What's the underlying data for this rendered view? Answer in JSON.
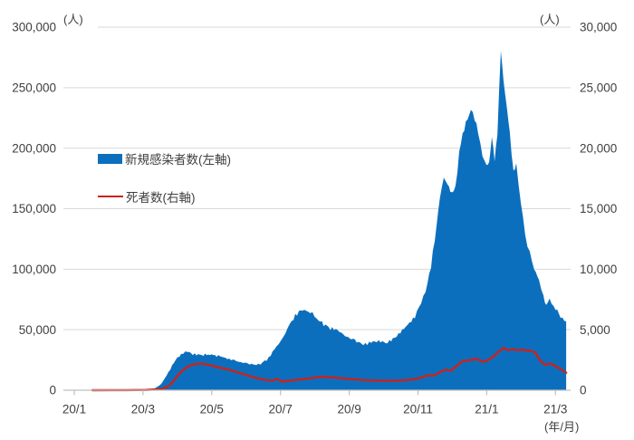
{
  "chart_data": {
    "type": "area",
    "combo": "area (left axis) + line (right axis)",
    "title": "",
    "grid": "horizontal",
    "legend_position": "inside-upper-left",
    "x_unit_note": "points use months since 20/1 tick (0 = 20/1, 14 = 21/3)",
    "left_axis": {
      "unit": "(人)",
      "min": 0,
      "max": 300000,
      "tick_step": 50000,
      "tick_labels": [
        "0",
        "50,000",
        "100,000",
        "150,000",
        "200,000",
        "250,000",
        "300,000"
      ]
    },
    "right_axis": {
      "unit": "(人)",
      "min": 0,
      "max": 30000,
      "tick_step": 5000,
      "tick_labels": [
        "0",
        "5,000",
        "10,000",
        "15,000",
        "20,000",
        "25,000",
        "30,000"
      ]
    },
    "x_axis": {
      "unit": "(年/月)",
      "tick_labels": [
        "20/1",
        "20/3",
        "20/5",
        "20/7",
        "20/9",
        "20/11",
        "21/1",
        "21/3"
      ],
      "tick_month_positions": [
        0,
        2,
        4,
        6,
        8,
        10,
        12,
        14
      ]
    },
    "series": [
      {
        "name": "新規感染者数(左軸)",
        "type": "area",
        "axis": "left",
        "color": "#0C6FBD",
        "points": [
          [
            0.53,
            0
          ],
          [
            1.5,
            100
          ],
          [
            2.05,
            300
          ],
          [
            2.32,
            1000
          ],
          [
            2.53,
            5000
          ],
          [
            2.74,
            15000
          ],
          [
            2.95,
            25000
          ],
          [
            3.11,
            29500
          ],
          [
            3.29,
            32500
          ],
          [
            3.45,
            30000
          ],
          [
            3.66,
            29000
          ],
          [
            3.95,
            29500
          ],
          [
            4.24,
            28000
          ],
          [
            4.56,
            25500
          ],
          [
            4.85,
            23000
          ],
          [
            5.16,
            21500
          ],
          [
            5.35,
            21000
          ],
          [
            5.48,
            23000
          ],
          [
            5.66,
            26500
          ],
          [
            5.88,
            36000
          ],
          [
            6.01,
            40500
          ],
          [
            6.14,
            47000
          ],
          [
            6.27,
            55000
          ],
          [
            6.43,
            61500
          ],
          [
            6.59,
            65500
          ],
          [
            6.8,
            66000
          ],
          [
            6.93,
            63000
          ],
          [
            7.11,
            57500
          ],
          [
            7.4,
            52000
          ],
          [
            7.61,
            50000
          ],
          [
            7.93,
            44000
          ],
          [
            8.12,
            42000
          ],
          [
            8.41,
            37500
          ],
          [
            8.64,
            40000
          ],
          [
            8.91,
            41000
          ],
          [
            9.06,
            38500
          ],
          [
            9.38,
            45000
          ],
          [
            9.7,
            53500
          ],
          [
            9.91,
            61000
          ],
          [
            10.09,
            72000
          ],
          [
            10.22,
            82000
          ],
          [
            10.38,
            103000
          ],
          [
            10.54,
            135000
          ],
          [
            10.64,
            160000
          ],
          [
            10.75,
            176000
          ],
          [
            10.86,
            170000
          ],
          [
            10.94,
            163000
          ],
          [
            11.01,
            161000
          ],
          [
            11.09,
            168000
          ],
          [
            11.2,
            196000
          ],
          [
            11.3,
            212000
          ],
          [
            11.44,
            224000
          ],
          [
            11.54,
            232000
          ],
          [
            11.65,
            224000
          ],
          [
            11.75,
            213000
          ],
          [
            11.88,
            193000
          ],
          [
            11.99,
            186000
          ],
          [
            12.07,
            189000
          ],
          [
            12.15,
            211000
          ],
          [
            12.23,
            190000
          ],
          [
            12.31,
            212000
          ],
          [
            12.41,
            281000
          ],
          [
            12.49,
            256000
          ],
          [
            12.59,
            231000
          ],
          [
            12.67,
            212000
          ],
          [
            12.78,
            180000
          ],
          [
            12.86,
            186000
          ],
          [
            12.99,
            156000
          ],
          [
            13.12,
            128000
          ],
          [
            13.25,
            113000
          ],
          [
            13.38,
            101000
          ],
          [
            13.52,
            90000
          ],
          [
            13.65,
            78000
          ],
          [
            13.73,
            71000
          ],
          [
            13.83,
            74000
          ],
          [
            13.95,
            70000
          ],
          [
            14.05,
            65000
          ],
          [
            14.15,
            61000
          ],
          [
            14.31,
            57000
          ]
        ]
      },
      {
        "name": "死者数(右軸)",
        "type": "line",
        "axis": "right",
        "color": "#CC221C",
        "points": [
          [
            0.53,
            0
          ],
          [
            1.5,
            5
          ],
          [
            2.1,
            20
          ],
          [
            2.55,
            100
          ],
          [
            2.75,
            350
          ],
          [
            2.9,
            800
          ],
          [
            3.1,
            1500
          ],
          [
            3.3,
            1950
          ],
          [
            3.5,
            2150
          ],
          [
            3.7,
            2200
          ],
          [
            3.9,
            2100
          ],
          [
            4.1,
            1950
          ],
          [
            4.5,
            1700
          ],
          [
            4.9,
            1350
          ],
          [
            5.3,
            1000
          ],
          [
            5.6,
            830
          ],
          [
            5.78,
            800
          ],
          [
            5.9,
            950
          ],
          [
            6.05,
            700
          ],
          [
            6.2,
            760
          ],
          [
            6.45,
            850
          ],
          [
            6.7,
            920
          ],
          [
            6.95,
            1020
          ],
          [
            7.15,
            1120
          ],
          [
            7.5,
            1060
          ],
          [
            7.9,
            960
          ],
          [
            8.3,
            870
          ],
          [
            8.6,
            810
          ],
          [
            9.0,
            770
          ],
          [
            9.4,
            790
          ],
          [
            9.8,
            870
          ],
          [
            10.1,
            1050
          ],
          [
            10.3,
            1250
          ],
          [
            10.45,
            1200
          ],
          [
            10.65,
            1500
          ],
          [
            10.8,
            1700
          ],
          [
            10.95,
            1600
          ],
          [
            11.1,
            1950
          ],
          [
            11.3,
            2400
          ],
          [
            11.55,
            2500
          ],
          [
            11.7,
            2600
          ],
          [
            11.88,
            2350
          ],
          [
            12.05,
            2500
          ],
          [
            12.2,
            2800
          ],
          [
            12.35,
            3200
          ],
          [
            12.5,
            3500
          ],
          [
            12.62,
            3300
          ],
          [
            12.75,
            3400
          ],
          [
            12.88,
            3300
          ],
          [
            13.0,
            3350
          ],
          [
            13.15,
            3300
          ],
          [
            13.3,
            3250
          ],
          [
            13.42,
            3100
          ],
          [
            13.55,
            2450
          ],
          [
            13.7,
            2100
          ],
          [
            13.85,
            2200
          ],
          [
            14.0,
            2000
          ],
          [
            14.15,
            1750
          ],
          [
            14.31,
            1450
          ]
        ]
      }
    ]
  },
  "colors": {
    "grid": "#D9D9D9",
    "axis_line": "#BFBFBF",
    "text": "#404040",
    "background": "#FFFFFF"
  }
}
